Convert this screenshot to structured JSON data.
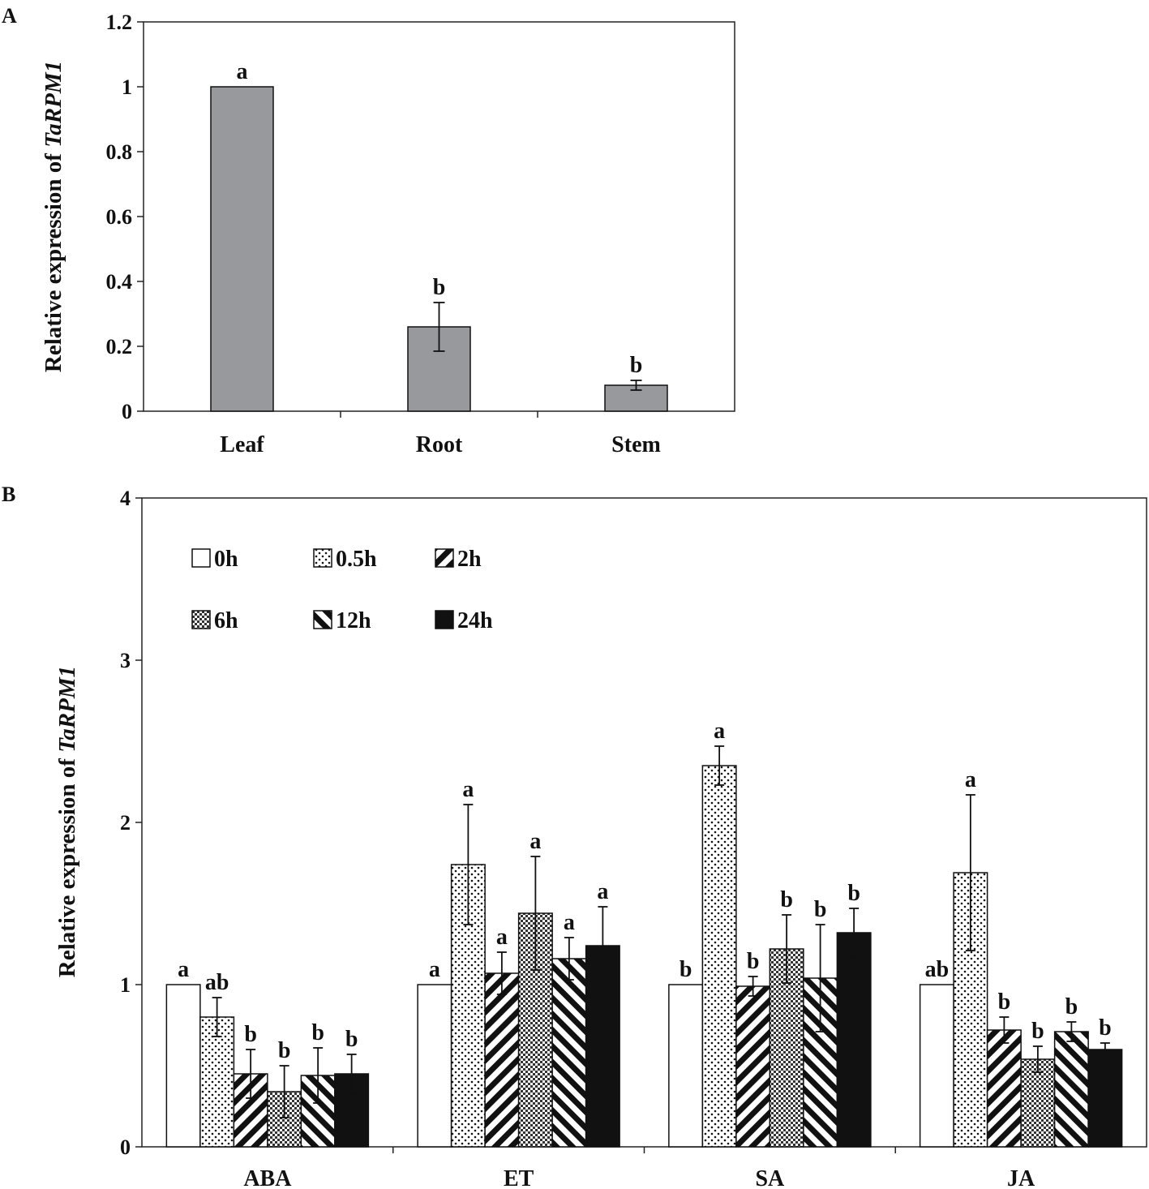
{
  "panels": {
    "a_label": "A",
    "b_label": "B"
  },
  "ylabel": {
    "prefix": "Relative expression of ",
    "gene": "TaRPM1"
  },
  "chart_data": [
    {
      "type": "bar",
      "panel": "A",
      "categories": [
        "Leaf",
        "Root",
        "Stem"
      ],
      "values": [
        1.0,
        0.26,
        0.08
      ],
      "errors": [
        0.0,
        0.075,
        0.015
      ],
      "significance": [
        "a",
        "b",
        "b"
      ],
      "ylim": [
        0,
        1.2
      ],
      "yticks": [
        "0",
        "0.2",
        "0.4",
        "0.6",
        "0.8",
        "1",
        "1.2"
      ],
      "ylabel": "Relative expression of TaRPM1",
      "xlabel": "",
      "bar_color": "#98999c"
    },
    {
      "type": "bar",
      "panel": "B",
      "categories": [
        "ABA",
        "ET",
        "SA",
        "JA"
      ],
      "ylim": [
        0,
        4
      ],
      "yticks": [
        "0",
        "1",
        "2",
        "3",
        "4"
      ],
      "ylabel": "Relative expression of TaRPM1",
      "legend_position": "top-left",
      "series": [
        {
          "name": "0h",
          "pattern": "white",
          "values": [
            1.0,
            1.0,
            1.0,
            1.0
          ],
          "errors": [
            0,
            0,
            0,
            0
          ],
          "significance": [
            "a",
            "a",
            "b",
            "ab"
          ]
        },
        {
          "name": "0.5h",
          "pattern": "dots",
          "values": [
            0.8,
            1.74,
            2.35,
            1.69
          ],
          "errors": [
            0.12,
            0.37,
            0.12,
            0.48
          ],
          "significance": [
            "ab",
            "a",
            "a",
            "a"
          ]
        },
        {
          "name": "2h",
          "pattern": "diag",
          "values": [
            0.45,
            1.07,
            0.99,
            0.72
          ],
          "errors": [
            0.15,
            0.13,
            0.06,
            0.08
          ],
          "significance": [
            "b",
            "a",
            "b",
            "b"
          ]
        },
        {
          "name": "6h",
          "pattern": "check",
          "values": [
            0.34,
            1.44,
            1.22,
            0.54
          ],
          "errors": [
            0.16,
            0.35,
            0.21,
            0.08
          ],
          "significance": [
            "b",
            "a",
            "b",
            "b"
          ]
        },
        {
          "name": "12h",
          "pattern": "anti",
          "values": [
            0.44,
            1.16,
            1.04,
            0.71
          ],
          "errors": [
            0.17,
            0.13,
            0.33,
            0.06
          ],
          "significance": [
            "b",
            "a",
            "b",
            "b"
          ]
        },
        {
          "name": "24h",
          "pattern": "black",
          "values": [
            0.45,
            1.24,
            1.32,
            0.6
          ],
          "errors": [
            0.12,
            0.24,
            0.15,
            0.04
          ],
          "significance": [
            "b",
            "a",
            "b",
            "b"
          ]
        }
      ]
    }
  ]
}
